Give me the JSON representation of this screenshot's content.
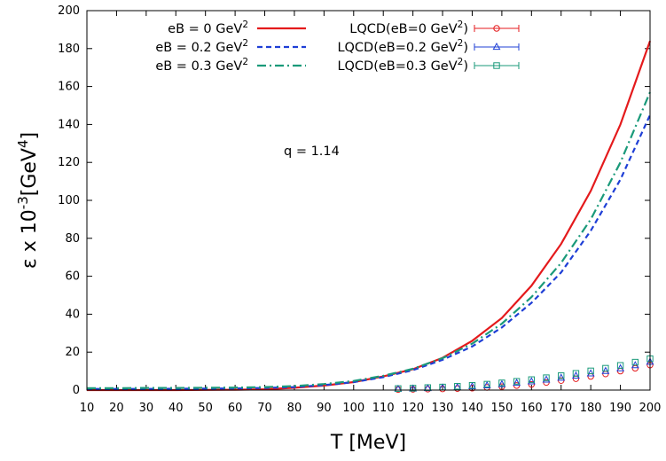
{
  "chart_data": {
    "type": "line",
    "xlabel": "T [MeV]",
    "ylabel_parts": {
      "pre": "ε x 10",
      "exp": "-3",
      "mid": "[GeV",
      "exp2": "4",
      "post": "]"
    },
    "xlim": [
      10,
      200
    ],
    "ylim": [
      0,
      200
    ],
    "xticks": [
      10,
      20,
      30,
      40,
      50,
      60,
      70,
      80,
      90,
      100,
      110,
      120,
      130,
      140,
      150,
      160,
      170,
      180,
      190,
      200
    ],
    "yticks": [
      0,
      20,
      40,
      60,
      80,
      100,
      120,
      140,
      160,
      180,
      200
    ],
    "annotation": "q = 1.14",
    "legend_position": "top-left",
    "series": [
      {
        "name": "eB = 0 GeV",
        "name_sup": "2",
        "kind": "line",
        "color": "#e41a1c",
        "dash": "solid",
        "x": [
          10,
          20,
          30,
          40,
          50,
          60,
          70,
          80,
          90,
          100,
          110,
          120,
          130,
          140,
          150,
          160,
          170,
          180,
          190,
          200
        ],
        "y": [
          0,
          0,
          0,
          0,
          0.1,
          0.2,
          0.4,
          1.2,
          2.4,
          4.2,
          7.2,
          11.0,
          17.0,
          26.0,
          38.0,
          55.0,
          77.0,
          105.0,
          140.0,
          184.0
        ]
      },
      {
        "name": "eB = 0.2 GeV",
        "name_sup": "2",
        "kind": "line",
        "color": "#1f3fd6",
        "dash": "dashed",
        "x": [
          10,
          20,
          30,
          40,
          50,
          60,
          70,
          80,
          90,
          100,
          110,
          120,
          130,
          140,
          150,
          160,
          170,
          180,
          190,
          200
        ],
        "y": [
          0.6,
          0.6,
          0.6,
          0.7,
          0.8,
          0.9,
          1.1,
          1.6,
          2.6,
          4.2,
          6.8,
          10.5,
          16.0,
          23.0,
          33.0,
          46.0,
          62.0,
          84.0,
          111.0,
          145.0
        ]
      },
      {
        "name": "eB = 0.3 GeV",
        "name_sup": "2",
        "kind": "line",
        "color": "#1a9a7a",
        "dash": "dashdot",
        "x": [
          10,
          20,
          30,
          40,
          50,
          60,
          70,
          80,
          90,
          100,
          110,
          120,
          130,
          140,
          150,
          160,
          170,
          180,
          190,
          200
        ],
        "y": [
          1.0,
          1.0,
          1.1,
          1.1,
          1.2,
          1.3,
          1.6,
          2.1,
          3.2,
          4.8,
          7.5,
          11.2,
          16.8,
          24.5,
          35.0,
          49.0,
          67.0,
          90.0,
          120.0,
          157.0
        ]
      },
      {
        "name": "LQCD(eB=0 GeV",
        "name_sup": "2",
        "name_post": ")",
        "kind": "points",
        "marker": "circle",
        "color": "#e41a1c",
        "x": [
          115,
          120,
          125,
          130,
          135,
          140,
          145,
          150,
          155,
          160,
          165,
          170,
          175,
          180,
          185,
          190,
          195,
          200
        ],
        "y": [
          0.3,
          0.4,
          0.5,
          0.6,
          0.8,
          1.0,
          1.4,
          1.8,
          2.4,
          3.0,
          4.0,
          5.0,
          6.0,
          7.2,
          8.5,
          10.0,
          11.5,
          13.2
        ]
      },
      {
        "name": "LQCD(eB=0.2 GeV",
        "name_sup": "2",
        "name_post": ")",
        "kind": "points",
        "marker": "triangle",
        "color": "#1f3fd6",
        "x": [
          115,
          120,
          125,
          130,
          135,
          140,
          145,
          150,
          155,
          160,
          165,
          170,
          175,
          180,
          185,
          190,
          195,
          200
        ],
        "y": [
          0.5,
          0.7,
          0.9,
          1.2,
          1.5,
          1.9,
          2.4,
          3.0,
          3.7,
          4.5,
          5.4,
          6.4,
          7.5,
          8.7,
          10.0,
          11.4,
          13.0,
          14.8
        ]
      },
      {
        "name": "LQCD(eB=0.3 GeV",
        "name_sup": "2",
        "name_post": ")",
        "kind": "points",
        "marker": "square",
        "color": "#1a9a7a",
        "x": [
          115,
          120,
          125,
          130,
          135,
          140,
          145,
          150,
          155,
          160,
          165,
          170,
          175,
          180,
          185,
          190,
          195,
          200
        ],
        "y": [
          0.8,
          1.0,
          1.3,
          1.6,
          2.0,
          2.5,
          3.1,
          3.8,
          4.6,
          5.5,
          6.5,
          7.6,
          8.8,
          10.1,
          11.5,
          13.0,
          14.7,
          16.5
        ]
      }
    ]
  }
}
